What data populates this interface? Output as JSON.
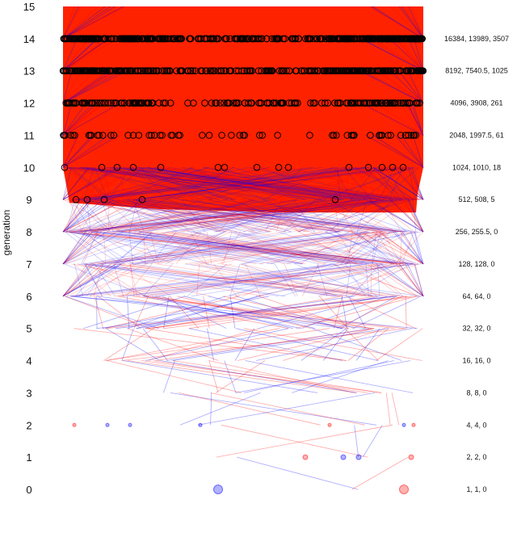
{
  "chart_data": {
    "type": "line",
    "ylabel": "generation",
    "ylim": [
      0,
      15
    ],
    "generations": [
      0,
      1,
      2,
      3,
      4,
      5,
      6,
      7,
      8,
      9,
      10,
      11,
      12,
      13,
      14,
      15
    ],
    "tick_labels": [
      "0",
      "1",
      "2",
      "3",
      "4",
      "5",
      "6",
      "7",
      "8",
      "9",
      "10",
      "11",
      "12",
      "13",
      "14",
      "15"
    ],
    "row_labels": [
      "1, 1, 0",
      "2, 2, 0",
      "4, 4, 0",
      "8, 8, 0",
      "16, 16, 0",
      "32, 32, 0",
      "64, 64, 0",
      "128, 128, 0",
      "256, 255.5, 0",
      "512, 508, 5",
      "1024, 1010, 18",
      "2048, 1997.5, 61",
      "4096, 3908, 261",
      "8192, 7540.5, 1025",
      "16384, 13989, 3507"
    ],
    "series": [
      {
        "color": "#0000ff"
      },
      {
        "color": "#ff0000"
      }
    ],
    "fill_color": "#ff2200",
    "marker_color": "#000000",
    "grid": false,
    "legend": "none"
  }
}
